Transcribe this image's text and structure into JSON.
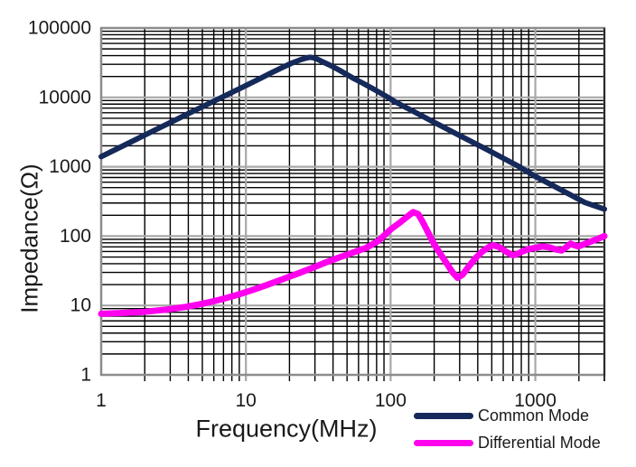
{
  "chart_data": {
    "type": "line",
    "title": "",
    "xlabel": "Frequency(MHz)",
    "ylabel": "Impedance(Ω)",
    "x_scale": "log",
    "y_scale": "log",
    "xlim": [
      1,
      3000
    ],
    "ylim": [
      1,
      100000
    ],
    "x_ticks": [
      "1",
      "10",
      "100",
      "1000"
    ],
    "y_ticks": [
      "1",
      "10",
      "100",
      "1000",
      "10000",
      "100000"
    ],
    "grid": {
      "minor": true,
      "minor_color": "#000000",
      "major_color": "#a8a8a8",
      "border_color": "#8c8c8c"
    },
    "legend_position": "bottom-right",
    "series": [
      {
        "name": "Common Mode",
        "color": "#15295a",
        "stroke_width": 6,
        "points": [
          [
            1,
            1400
          ],
          [
            1.5,
            2120
          ],
          [
            2,
            2860
          ],
          [
            3,
            4330
          ],
          [
            4,
            5830
          ],
          [
            5,
            7320
          ],
          [
            7,
            10300
          ],
          [
            9,
            13300
          ],
          [
            12,
            17900
          ],
          [
            15,
            22600
          ],
          [
            18,
            27200
          ],
          [
            21,
            31500
          ],
          [
            24,
            35000
          ],
          [
            26,
            36900
          ],
          [
            27.5,
            37900
          ],
          [
            29,
            37400
          ],
          [
            31,
            35800
          ],
          [
            34,
            32500
          ],
          [
            38,
            29200
          ],
          [
            43,
            25500
          ],
          [
            49,
            21800
          ],
          [
            56,
            18600
          ],
          [
            65,
            15800
          ],
          [
            76,
            13200
          ],
          [
            90,
            10800
          ],
          [
            105,
            8900
          ],
          [
            125,
            7300
          ],
          [
            150,
            5980
          ],
          [
            185,
            4760
          ],
          [
            230,
            3760
          ],
          [
            290,
            2920
          ],
          [
            370,
            2250
          ],
          [
            470,
            1740
          ],
          [
            600,
            1330
          ],
          [
            770,
            1010
          ],
          [
            1000,
            725
          ],
          [
            1300,
            545
          ],
          [
            1700,
            405
          ],
          [
            2200,
            305
          ],
          [
            3000,
            245
          ]
        ]
      },
      {
        "name": "Differential Mode",
        "color": "#ff00ee",
        "stroke_width": 7,
        "points": [
          [
            1,
            7.6
          ],
          [
            1.4,
            7.8
          ],
          [
            2,
            8.1
          ],
          [
            2.8,
            8.7
          ],
          [
            3.8,
            9.5
          ],
          [
            5,
            10.6
          ],
          [
            6.5,
            12
          ],
          [
            8.5,
            14
          ],
          [
            11,
            16.6
          ],
          [
            14,
            19.8
          ],
          [
            18,
            24
          ],
          [
            23,
            29
          ],
          [
            29,
            35
          ],
          [
            36,
            42
          ],
          [
            45,
            50
          ],
          [
            55,
            58
          ],
          [
            68,
            68
          ],
          [
            82,
            85
          ],
          [
            100,
            125
          ],
          [
            115,
            155
          ],
          [
            130,
            190
          ],
          [
            143,
            222
          ],
          [
            155,
            208
          ],
          [
            168,
            155
          ],
          [
            182,
            112
          ],
          [
            200,
            76
          ],
          [
            220,
            56
          ],
          [
            245,
            40
          ],
          [
            268,
            30
          ],
          [
            290,
            25
          ],
          [
            315,
            28
          ],
          [
            345,
            36
          ],
          [
            385,
            48
          ],
          [
            430,
            60
          ],
          [
            480,
            70
          ],
          [
            510,
            74
          ],
          [
            560,
            70
          ],
          [
            610,
            62
          ],
          [
            660,
            56
          ],
          [
            700,
            53
          ],
          [
            750,
            55
          ],
          [
            810,
            60
          ],
          [
            900,
            65
          ],
          [
            1000,
            68
          ],
          [
            1120,
            71
          ],
          [
            1250,
            69
          ],
          [
            1400,
            64
          ],
          [
            1520,
            62
          ],
          [
            1650,
            70
          ],
          [
            1750,
            78
          ],
          [
            1850,
            74
          ],
          [
            1980,
            71
          ],
          [
            2150,
            76
          ],
          [
            2400,
            83
          ],
          [
            2700,
            91
          ],
          [
            3000,
            100
          ]
        ]
      }
    ]
  }
}
